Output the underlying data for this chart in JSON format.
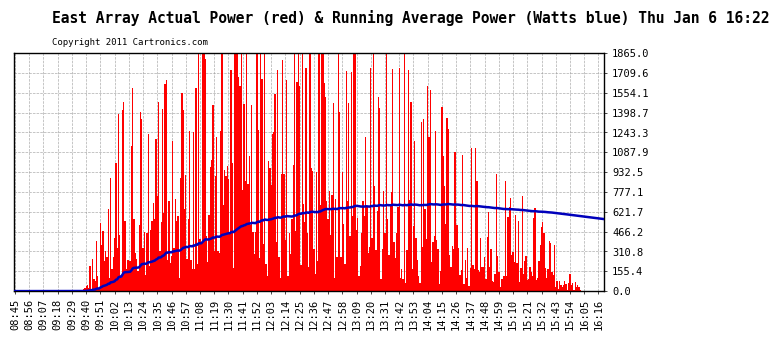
{
  "title": "East Array Actual Power (red) & Running Average Power (Watts blue) Thu Jan 6 16:22",
  "copyright": "Copyright 2011 Cartronics.com",
  "yticks": [
    0.0,
    155.4,
    310.8,
    466.2,
    621.7,
    777.1,
    932.5,
    1087.9,
    1243.3,
    1398.7,
    1554.1,
    1709.6,
    1865.0
  ],
  "ymax": 1865.0,
  "ymin": 0.0,
  "bar_color": "#FF0000",
  "avg_color": "#0000BB",
  "bg_color": "#FFFFFF",
  "grid_color": "#999999",
  "title_fontsize": 10.5,
  "copyright_fontsize": 6.5,
  "tick_fontsize": 7.5,
  "tick_interval_minutes": 11
}
